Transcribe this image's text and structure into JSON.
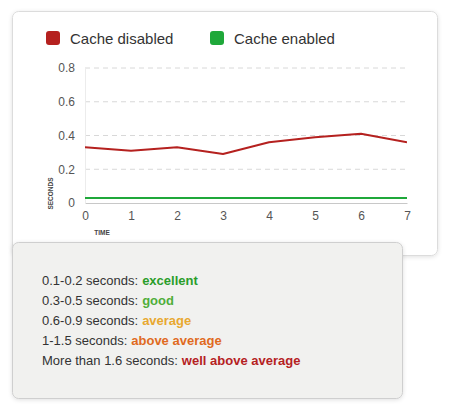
{
  "chart_data": {
    "type": "line",
    "x_label": "TIME",
    "y_label": "SECONDS",
    "x": [
      0,
      1,
      2,
      3,
      4,
      5,
      6,
      7
    ],
    "series": [
      {
        "name": "Cache disabled",
        "color": "#b5211f",
        "values": [
          0.33,
          0.31,
          0.33,
          0.29,
          0.36,
          0.39,
          0.41,
          0.36
        ]
      },
      {
        "name": "Cache enabled",
        "color": "#1fa83a",
        "values": [
          0.03,
          0.03,
          0.03,
          0.03,
          0.03,
          0.03,
          0.03,
          0.03
        ]
      }
    ],
    "xlim": [
      0,
      7
    ],
    "xticks": [
      0,
      1,
      2,
      3,
      4,
      5,
      6,
      7
    ],
    "ylim": [
      0,
      0.8
    ],
    "yticks": [
      0,
      0.2,
      0.4,
      0.6,
      0.8
    ],
    "grid": true,
    "legend": "top-left"
  },
  "rating_scale": {
    "items": [
      {
        "text": "0.1-0.2 seconds:",
        "rating": "excellent",
        "color": "#2a9d2a"
      },
      {
        "text": "0.3-0.5 seconds:",
        "rating": "good",
        "color": "#4fae3a"
      },
      {
        "text": "0.6-0.9 seconds:",
        "rating": "average",
        "color": "#e8a830"
      },
      {
        "text": "1-1.5 seconds:",
        "rating": "above average",
        "color": "#e06a1e"
      },
      {
        "text": "More than 1.6 seconds:",
        "rating": "well above average",
        "color": "#b5211f"
      }
    ]
  }
}
